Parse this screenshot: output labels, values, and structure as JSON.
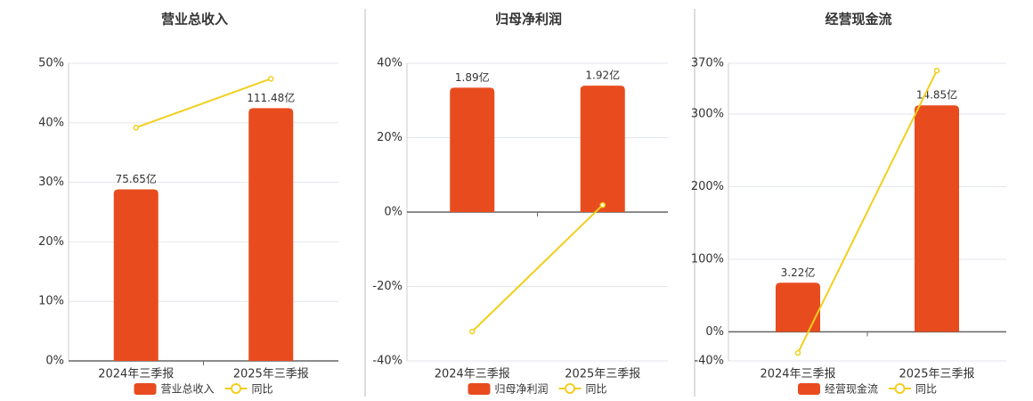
{
  "chart_data": [
    {
      "type": "bar",
      "title": "营业总收入",
      "categories": [
        "2024年三季报",
        "2025年三季报"
      ],
      "series": [
        {
          "name": "营业总收入",
          "type": "bar",
          "axis": "y2",
          "color": "#e84c1e",
          "values": [
            75.65,
            111.48
          ],
          "value_labels": [
            "75.65亿",
            "111.48亿"
          ]
        },
        {
          "name": "同比",
          "type": "line",
          "color": "#f2cf1e",
          "values": [
            39.2,
            47.4
          ]
        }
      ],
      "ylim": [
        0,
        50
      ],
      "yticks": [
        {
          "value": 0,
          "label": "0%"
        },
        {
          "value": 10,
          "label": "10%"
        },
        {
          "value": 20,
          "label": "20%"
        },
        {
          "value": 30,
          "label": "30%"
        },
        {
          "value": 40,
          "label": "40%"
        },
        {
          "value": 50,
          "label": "50%"
        }
      ],
      "y2lim": [
        0,
        131.3
      ],
      "grid": true,
      "legend": "bottom"
    },
    {
      "type": "bar",
      "title": "归母净利润",
      "categories": [
        "2024年三季报",
        "2025年三季报"
      ],
      "series": [
        {
          "name": "归母净利润",
          "type": "bar",
          "axis": "y2",
          "color": "#e84c1e",
          "values": [
            1.89,
            1.92
          ],
          "value_labels": [
            "1.89亿",
            "1.92亿"
          ]
        },
        {
          "name": "同比",
          "type": "line",
          "color": "#f2cf1e",
          "values": [
            -32.1,
            1.9
          ]
        }
      ],
      "ylim": [
        -40,
        40
      ],
      "yticks": [
        {
          "value": -40,
          "label": "-40%"
        },
        {
          "value": -20,
          "label": "-20%"
        },
        {
          "value": 0,
          "label": "0%"
        },
        {
          "value": 20,
          "label": "20%"
        },
        {
          "value": 40,
          "label": "40%"
        }
      ],
      "y2lim": [
        -2.26,
        2.26
      ],
      "grid": true,
      "legend": "bottom"
    },
    {
      "type": "bar",
      "title": "经营现金流",
      "categories": [
        "2024年三季报",
        "2025年三季报"
      ],
      "series": [
        {
          "name": "经营现金流",
          "type": "bar",
          "axis": "y2",
          "color": "#e84c1e",
          "values": [
            3.22,
            14.85
          ],
          "value_labels": [
            "3.22亿",
            "14.85亿"
          ]
        },
        {
          "name": "同比",
          "type": "line",
          "color": "#f2cf1e",
          "values": [
            -29,
            360
          ]
        }
      ],
      "ylim": [
        -40,
        370
      ],
      "yticks": [
        {
          "value": -40,
          "label": "-40%"
        },
        {
          "value": 0,
          "label": "0%"
        },
        {
          "value": 100,
          "label": "100%"
        },
        {
          "value": 200,
          "label": "200%"
        },
        {
          "value": 300,
          "label": "300%"
        },
        {
          "value": 370,
          "label": "370%"
        }
      ],
      "y2lim": [
        -1.904,
        17.61
      ],
      "grid": true,
      "legend": "bottom"
    }
  ]
}
